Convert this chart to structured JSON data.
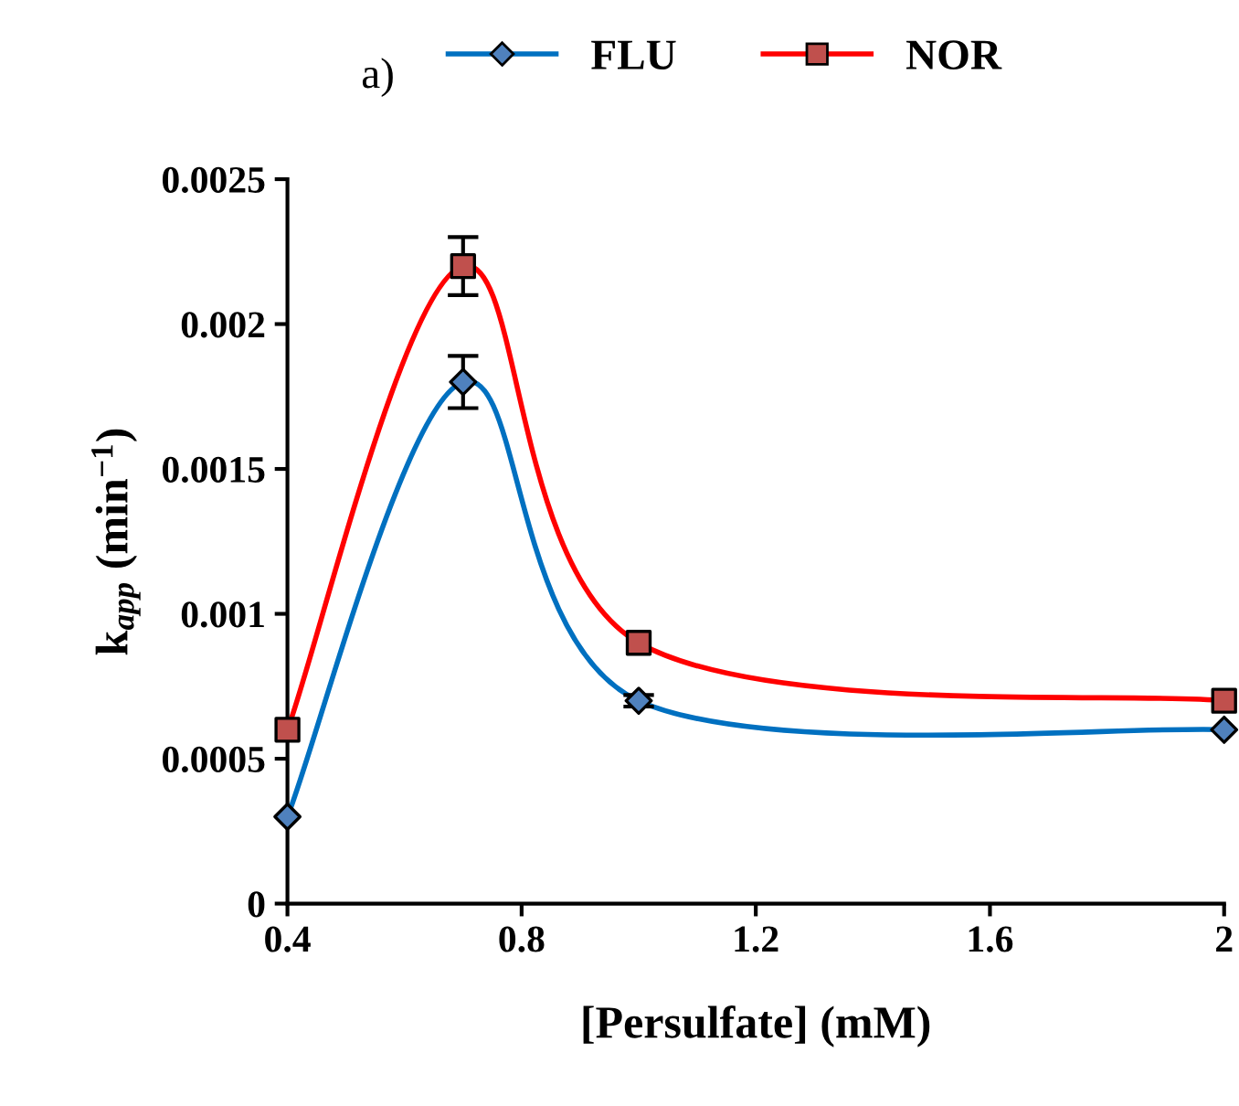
{
  "chart_data": {
    "type": "line",
    "title": "a)",
    "xlabel": "[Persulfate] (mM)",
    "ylabel": "k$_{app}$ (min$^{−1}$)",
    "x": [
      0.4,
      0.7,
      1.0,
      2.0
    ],
    "series": [
      {
        "name": "FLU",
        "color": "#0070c0",
        "colors": [
          "#4f81bd",
          "#4f81bd",
          "#4f81bd",
          "#4f81bd"
        ],
        "marker": "diamond",
        "values": [
          0.0003,
          0.0018,
          0.0007,
          0.0006
        ],
        "errors": [
          null,
          9e-05,
          2e-05,
          null
        ]
      },
      {
        "name": "NOR",
        "color": "#ff0000",
        "colors": [
          "#c0504d",
          "#c0504d",
          "#c0504d",
          "#c0504d"
        ],
        "marker": "square",
        "values": [
          0.0006,
          0.0022,
          0.0009,
          0.0007
        ],
        "errors": [
          null,
          0.0001,
          null,
          null
        ]
      }
    ],
    "xlim": [
      0.4,
      2
    ],
    "xticks": [
      0.4,
      0.8,
      1.2,
      1.6,
      2
    ],
    "ylim": [
      0,
      0.0025
    ],
    "yticks": [
      0,
      0.0005,
      0.001,
      0.0015,
      0.002,
      0.0025
    ],
    "legend": "top",
    "grid": false
  }
}
